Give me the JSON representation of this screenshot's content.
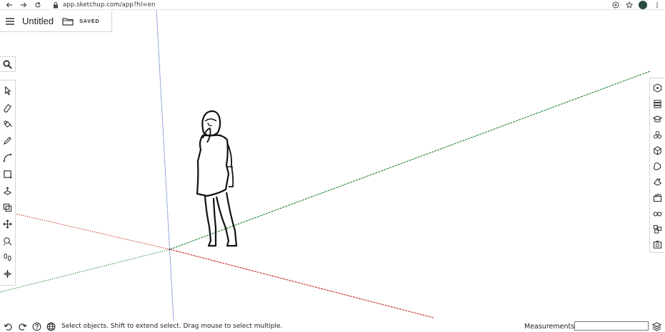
{
  "browser": {
    "url": "app.sketchup.com/app?hl=en",
    "icons": [
      "back-arrow-icon",
      "forward-arrow-icon",
      "reload-icon",
      "lock-icon",
      "add-tab-icon",
      "star-icon",
      "profile-avatar"
    ]
  },
  "header": {
    "menu_icon": "hamburger-menu-icon",
    "title": "Untitled",
    "folder_icon": "folder-icon",
    "save_state": "SAVED"
  },
  "left_toolbar": {
    "search_icon": "search-icon",
    "tools": [
      {
        "name": "select-tool",
        "icon": "cursor-arrow-icon"
      },
      {
        "name": "eraser-tool",
        "icon": "eraser-icon"
      },
      {
        "name": "paint-bucket-tool",
        "icon": "paint-bucket-icon"
      },
      {
        "name": "line-tool",
        "icon": "pencil-icon"
      },
      {
        "name": "arc-tool",
        "icon": "arc-icon"
      },
      {
        "name": "rectangle-tool",
        "icon": "rectangle-icon"
      },
      {
        "name": "push-pull-tool",
        "icon": "push-pull-icon"
      },
      {
        "name": "offset-tool",
        "icon": "offset-icon"
      },
      {
        "name": "move-tool",
        "icon": "move-arrows-icon"
      },
      {
        "name": "tape-measure-tool",
        "icon": "tape-measure-icon"
      },
      {
        "name": "walk-tool",
        "icon": "footsteps-icon"
      },
      {
        "name": "orbit-tool",
        "icon": "orbit-icon"
      }
    ]
  },
  "right_panels": [
    {
      "name": "entity-info-panel",
      "icon": "cube-info-icon"
    },
    {
      "name": "instructor-panel",
      "icon": "layers-icon"
    },
    {
      "name": "components-panel",
      "icon": "graduation-cap-icon"
    },
    {
      "name": "materials-panel",
      "icon": "materials-icon"
    },
    {
      "name": "styles-panel",
      "icon": "styles-cube-icon"
    },
    {
      "name": "tags-panel",
      "icon": "tag-icon"
    },
    {
      "name": "scenes-panel",
      "icon": "scenes-icon"
    },
    {
      "name": "shadows-panel",
      "icon": "clapperboard-icon"
    },
    {
      "name": "display-panel",
      "icon": "glasses-icon"
    },
    {
      "name": "solid-inspector-panel",
      "icon": "cubes-icon"
    },
    {
      "name": "outliner-panel",
      "icon": "camera-icon"
    }
  ],
  "status_bar": {
    "icons": [
      "undo-icon",
      "redo-icon",
      "help-icon",
      "globe-icon"
    ],
    "message": "Select objects. Shift to extend select. Drag mouse to select multiple.",
    "measurements_label": "Measurements",
    "measurements_value": "",
    "right_icon": "scene-stack-icon"
  },
  "colors": {
    "axis_red": "#c7372f",
    "axis_green": "#2e8b3e",
    "axis_blue": "#2d4fb8",
    "ink": "#111111",
    "border": "#d6d6d6"
  }
}
